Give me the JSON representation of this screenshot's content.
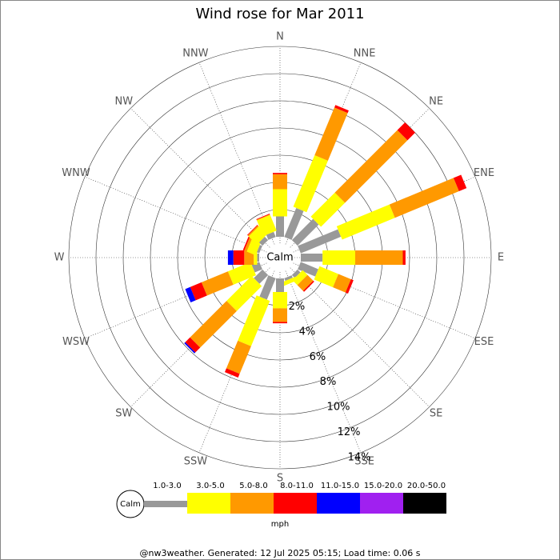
{
  "chart_data": {
    "type": "wind-rose",
    "title": "Wind rose for Mar 2011",
    "categories": [
      "N",
      "NNE",
      "NE",
      "ENE",
      "E",
      "ESE",
      "SE",
      "SSE",
      "S",
      "SSW",
      "SW",
      "WSW",
      "W",
      "WNW",
      "NW",
      "NNW"
    ],
    "series": [
      {
        "name": "1.0-3.0",
        "color": "#999999",
        "values": [
          1.5,
          2.3,
          2.2,
          3.2,
          1.6,
          1.4,
          0.3,
          0.2,
          1.0,
          1.7,
          0.9,
          0.6,
          0.15,
          0.2,
          0.35,
          0.4
        ]
      },
      {
        "name": "3.0-5.0",
        "color": "#ffff00",
        "values": [
          2.0,
          4.1,
          2.5,
          4.2,
          2.4,
          1.5,
          0.5,
          0.3,
          1.2,
          3.6,
          2.6,
          1.8,
          0.25,
          0.7,
          0.85,
          1.25
        ]
      },
      {
        "name": "5.0-8.0",
        "color": "#ff9900",
        "values": [
          1.1,
          3.8,
          6.5,
          5.1,
          3.5,
          1.0,
          0.6,
          0,
          1.0,
          2.2,
          3.8,
          2.1,
          0.7,
          0.2,
          0.1,
          0.05
        ]
      },
      {
        "name": "8.0-11.0",
        "color": "#ff0000",
        "values": [
          0.1,
          0.2,
          0.8,
          0.6,
          0.2,
          0.2,
          0.1,
          0,
          0.1,
          0.3,
          0.5,
          0.9,
          0.8,
          0.1,
          0.05,
          0.05
        ]
      },
      {
        "name": "11.0-15.0",
        "color": "#0000ff",
        "values": [
          0,
          0,
          0,
          0,
          0,
          0,
          0,
          0,
          0,
          0,
          0.1,
          0.4,
          0.4,
          0,
          0,
          0
        ]
      },
      {
        "name": "15.0-20.0",
        "color": "#a020f0",
        "values": [
          0,
          0,
          0,
          0,
          0,
          0,
          0,
          0,
          0,
          0,
          0,
          0,
          0,
          0,
          0,
          0
        ]
      },
      {
        "name": "20.0-50.0",
        "color": "#000000",
        "values": [
          0,
          0,
          0,
          0,
          0,
          0,
          0,
          0,
          0,
          0,
          0,
          0,
          0,
          0,
          0,
          0
        ]
      }
    ],
    "calm_label": "Calm",
    "unit": "mph",
    "rlim": [
      0,
      14
    ],
    "rticks": [
      {
        "value": 2,
        "label": "2%"
      },
      {
        "value": 4,
        "label": "4%"
      },
      {
        "value": 6,
        "label": "6%"
      },
      {
        "value": 8,
        "label": "8%"
      },
      {
        "value": 10,
        "label": "10%"
      },
      {
        "value": 12,
        "label": "12%"
      },
      {
        "value": 14,
        "label": "14%"
      }
    ],
    "footer": "@nw3weather. Generated: 12 Jul 2025 05:15; Load time: 0.06 s"
  }
}
